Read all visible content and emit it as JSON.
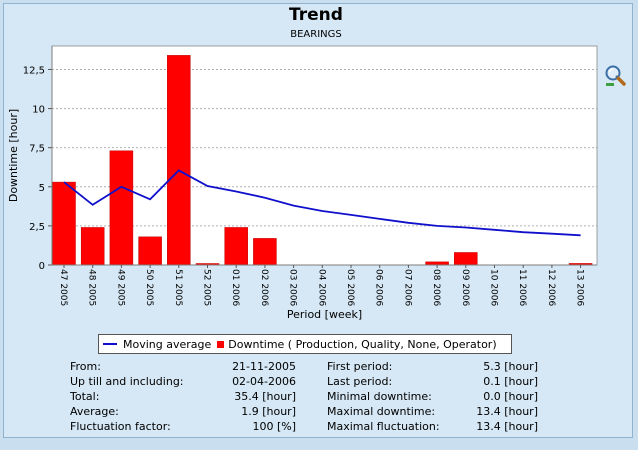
{
  "header": {
    "title": "Trend",
    "subtitle": "BEARINGS"
  },
  "legend": {
    "moving_average": "Moving average",
    "downtime": "Downtime ( Production, Quality, None, Operator)"
  },
  "colors": {
    "bar": "#ff0000",
    "line": "#1010cc",
    "plot_bg": "#ffffff",
    "grid": "#b0b0b0"
  },
  "chart_data": {
    "type": "bar",
    "xlabel": "Period [week]",
    "ylabel": "Downtime [hour]",
    "ylim": [
      0,
      14
    ],
    "yticks": [
      "0",
      "2,5",
      "5",
      "7,5",
      "10",
      "12,5"
    ],
    "ytick_values": [
      0,
      2.5,
      5,
      7.5,
      10,
      12.5
    ],
    "grid": true,
    "categories": [
      "47 2005",
      "48 2005",
      "49 2005",
      "50 2005",
      "51 2005",
      "52 2005",
      "01 2006",
      "02 2006",
      "03 2006",
      "04 2006",
      "05 2006",
      "06 2006",
      "07 2006",
      "08 2006",
      "09 2006",
      "10 2006",
      "11 2006",
      "12 2006",
      "13 2006"
    ],
    "series": [
      {
        "name": "Downtime ( Production, Quality, None, Operator)",
        "type": "bar",
        "values": [
          5.3,
          2.4,
          7.3,
          1.8,
          13.4,
          0.05,
          2.4,
          1.7,
          0,
          0,
          0,
          0,
          0,
          0.2,
          0.8,
          0,
          0,
          0,
          0.1
        ]
      },
      {
        "name": "Moving average",
        "type": "line",
        "values": [
          5.3,
          3.85,
          5.0,
          4.2,
          6.05,
          5.05,
          4.7,
          4.3,
          3.8,
          3.45,
          3.2,
          2.95,
          2.7,
          2.5,
          2.4,
          2.25,
          2.1,
          2.0,
          1.9
        ]
      }
    ]
  },
  "stats_left": [
    {
      "label": "From:",
      "value": "21-11-2005"
    },
    {
      "label": "Up till and including:",
      "value": "02-04-2006"
    },
    {
      "label": "Total:",
      "value": "35.4 [hour]"
    },
    {
      "label": "Average:",
      "value": "1.9 [hour]"
    },
    {
      "label": "Fluctuation factor:",
      "value": "100 [%]"
    }
  ],
  "stats_right": [
    {
      "label": "First period:",
      "value": "5.3 [hour]"
    },
    {
      "label": "Last period:",
      "value": "0.1 [hour]"
    },
    {
      "label": "Minimal downtime:",
      "value": "0.0 [hour]"
    },
    {
      "label": "Maximal downtime:",
      "value": "13.4 [hour]"
    },
    {
      "label": "Maximal fluctuation:",
      "value": "13.4 [hour]"
    }
  ],
  "toolbar": {
    "zoom_icon": "magnifier-icon"
  }
}
